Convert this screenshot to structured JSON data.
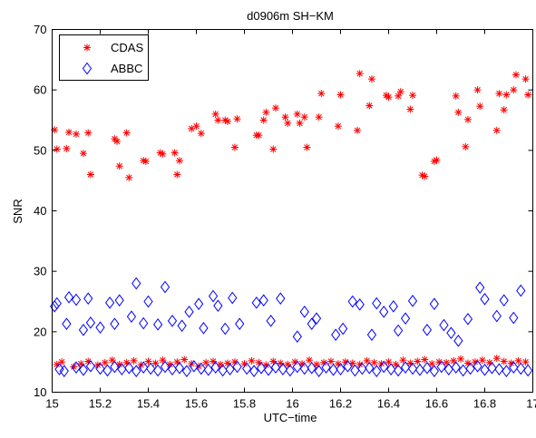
{
  "chart_data": {
    "type": "scatter",
    "title": "d0906m SH−KM",
    "xlabel": "UTC−time",
    "ylabel": "SNR",
    "xlim": [
      15,
      17
    ],
    "ylim": [
      10,
      70
    ],
    "xticks": [
      "15",
      "15.2",
      "15.4",
      "15.6",
      "15.8",
      "16",
      "16.2",
      "16.4",
      "16.6",
      "16.8",
      "17"
    ],
    "yticks": [
      "10",
      "20",
      "30",
      "40",
      "50",
      "60",
      "70"
    ],
    "grid": false,
    "legend_position": "top-left",
    "series": [
      {
        "name": "CDAS",
        "marker": "asterisk",
        "color": "#ff0000",
        "x": [
          15.01,
          15.02,
          15.06,
          15.07,
          15.1,
          15.13,
          15.15,
          15.16,
          15.26,
          15.27,
          15.28,
          15.31,
          15.32,
          15.38,
          15.39,
          15.45,
          15.46,
          15.51,
          15.52,
          15.53,
          15.58,
          15.6,
          15.62,
          15.68,
          15.69,
          15.72,
          15.73,
          15.76,
          15.77,
          15.85,
          15.86,
          15.88,
          15.89,
          15.92,
          15.93,
          15.97,
          15.98,
          16.02,
          16.03,
          16.05,
          16.06,
          16.11,
          16.12,
          16.19,
          16.2,
          16.27,
          16.28,
          16.32,
          16.33,
          16.39,
          16.4,
          16.44,
          16.45,
          16.49,
          16.5,
          16.54,
          16.55,
          16.59,
          16.6,
          16.68,
          16.69,
          16.72,
          16.73,
          16.77,
          16.78,
          16.85,
          16.86,
          16.88,
          16.89,
          16.92,
          16.93,
          16.97,
          16.98
        ],
        "y": [
          53.4,
          50.2,
          50.3,
          53.0,
          52.7,
          49.5,
          52.9,
          46.0,
          51.9,
          51.5,
          47.4,
          52.9,
          45.5,
          48.3,
          48.2,
          49.6,
          49.4,
          49.6,
          46.0,
          48.3,
          53.6,
          54.0,
          52.8,
          56.0,
          55.0,
          55.0,
          54.8,
          50.5,
          55.2,
          52.5,
          52.5,
          55.0,
          56.3,
          50.2,
          57.0,
          55.5,
          54.5,
          56.0,
          54.5,
          55.5,
          50.5,
          55.5,
          59.4,
          54.0,
          59.2,
          53.3,
          62.7,
          57.4,
          61.8,
          59.1,
          58.8,
          59.0,
          59.7,
          56.8,
          59.1,
          45.9,
          45.7,
          48.2,
          48.4,
          59.0,
          56.3,
          50.6,
          55.1,
          60.0,
          57.3,
          53.3,
          59.4,
          56.7,
          59.2,
          60.0,
          62.5,
          61.8,
          59.2
        ]
      },
      {
        "name": "ABBC",
        "marker": "diamond",
        "color": "#0000ff",
        "x": [
          15.01,
          15.02,
          15.06,
          15.07,
          15.1,
          15.13,
          15.15,
          15.16,
          15.2,
          15.24,
          15.26,
          15.28,
          15.33,
          15.35,
          15.38,
          15.4,
          15.44,
          15.47,
          15.5,
          15.54,
          15.57,
          15.61,
          15.63,
          15.67,
          15.69,
          15.72,
          15.75,
          15.78,
          15.85,
          15.88,
          15.91,
          15.95,
          16.02,
          16.05,
          16.08,
          16.1,
          16.18,
          16.21,
          16.25,
          16.28,
          16.33,
          16.35,
          16.38,
          16.42,
          16.44,
          16.47,
          16.5,
          16.56,
          16.59,
          16.63,
          16.66,
          16.69,
          16.73,
          16.78,
          16.8,
          16.85,
          16.88,
          16.92,
          16.95
        ],
        "y": [
          24.2,
          24.7,
          21.3,
          25.7,
          25.3,
          20.3,
          25.5,
          21.5,
          20.7,
          24.8,
          21.3,
          25.2,
          22.5,
          28.0,
          21.4,
          25.0,
          21.2,
          27.4,
          21.8,
          21.0,
          23.3,
          24.6,
          20.6,
          25.9,
          24.3,
          20.5,
          25.6,
          21.3,
          24.8,
          25.2,
          21.8,
          25.5,
          19.2,
          23.3,
          21.3,
          22.2,
          19.5,
          20.5,
          25.0,
          24.5,
          19.5,
          24.7,
          23.3,
          24.2,
          20.2,
          22.2,
          25.1,
          20.3,
          24.6,
          21.1,
          19.8,
          18.5,
          22.1,
          27.3,
          25.4,
          22.6,
          25.2,
          22.3,
          26.8
        ]
      },
      {
        "name": "",
        "marker": "asterisk",
        "color": "#ff0000",
        "x": [
          15.02,
          15.04,
          15.09,
          15.12,
          15.15,
          15.19,
          15.22,
          15.25,
          15.28,
          15.31,
          15.34,
          15.37,
          15.4,
          15.43,
          15.46,
          15.49,
          15.52,
          15.55,
          15.58,
          15.61,
          15.64,
          15.67,
          15.7,
          15.73,
          15.76,
          15.8,
          15.83,
          15.86,
          15.89,
          15.92,
          15.95,
          15.98,
          16.01,
          16.04,
          16.07,
          16.1,
          16.13,
          16.16,
          16.19,
          16.22,
          16.25,
          16.28,
          16.31,
          16.34,
          16.37,
          16.4,
          16.43,
          16.46,
          16.49,
          16.52,
          16.55,
          16.58,
          16.61,
          16.64,
          16.67,
          16.7,
          16.73,
          16.76,
          16.79,
          16.82,
          16.85,
          16.88,
          16.91,
          16.94,
          16.97
        ],
        "y": [
          14.6,
          15.0,
          14.2,
          14.7,
          15.1,
          14.5,
          14.9,
          15.3,
          14.6,
          14.9,
          15.2,
          14.5,
          15.1,
          14.8,
          15.3,
          14.6,
          15.0,
          15.4,
          14.7,
          14.3,
          14.9,
          15.1,
          14.6,
          14.8,
          15.0,
          14.7,
          15.2,
          14.9,
          14.5,
          15.1,
          14.8,
          14.6,
          15.0,
          14.7,
          15.3,
          14.6,
          14.9,
          15.1,
          14.7,
          15.0,
          14.8,
          14.6,
          15.2,
          14.9,
          14.7,
          15.0,
          14.6,
          15.3,
          14.8,
          15.1,
          15.4,
          14.7,
          15.0,
          14.9,
          15.2,
          15.5,
          14.8,
          15.0,
          15.3,
          14.9,
          15.6,
          15.1,
          14.8,
          15.2,
          15.0
        ]
      },
      {
        "name": "",
        "marker": "diamond",
        "color": "#0000ff",
        "x": [
          15.03,
          15.05,
          15.1,
          15.13,
          15.16,
          15.2,
          15.23,
          15.26,
          15.29,
          15.32,
          15.35,
          15.38,
          15.41,
          15.44,
          15.47,
          15.5,
          15.53,
          15.56,
          15.59,
          15.62,
          15.65,
          15.68,
          15.71,
          15.74,
          15.77,
          15.81,
          15.84,
          15.87,
          15.9,
          15.93,
          15.96,
          15.99,
          16.02,
          16.05,
          16.08,
          16.11,
          16.14,
          16.17,
          16.2,
          16.23,
          16.26,
          16.29,
          16.32,
          16.35,
          16.38,
          16.41,
          16.44,
          16.47,
          16.5,
          16.53,
          16.56,
          16.59,
          16.62,
          16.65,
          16.68,
          16.71,
          16.74,
          16.77,
          16.8,
          16.83,
          16.86,
          16.89,
          16.92,
          16.95,
          16.98
        ],
        "y": [
          13.8,
          13.5,
          14.1,
          13.7,
          14.3,
          13.9,
          13.6,
          14.2,
          13.8,
          14.0,
          13.5,
          14.1,
          13.9,
          13.6,
          14.2,
          13.8,
          14.0,
          13.5,
          14.3,
          13.9,
          13.7,
          14.1,
          13.6,
          13.8,
          14.2,
          13.9,
          13.5,
          14.0,
          13.7,
          14.1,
          13.8,
          13.6,
          14.2,
          13.9,
          14.0,
          13.5,
          14.1,
          13.7,
          13.8,
          14.3,
          13.6,
          13.9,
          14.0,
          13.5,
          14.2,
          13.8,
          13.6,
          14.1,
          13.9,
          13.7,
          14.0,
          13.5,
          14.2,
          13.8,
          14.1,
          13.6,
          13.9,
          14.3,
          13.7,
          14.0,
          13.8,
          13.5,
          14.1,
          13.9,
          13.6
        ]
      }
    ]
  }
}
